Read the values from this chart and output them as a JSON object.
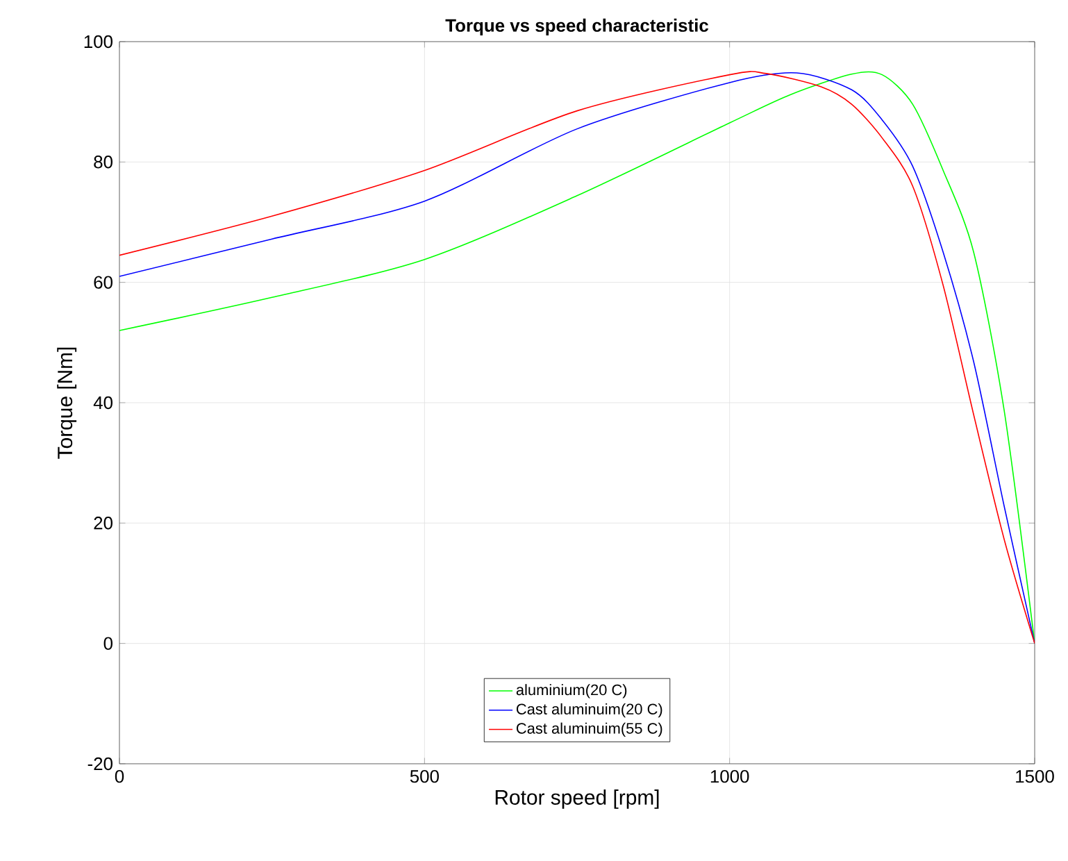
{
  "chart_data": {
    "type": "line",
    "title": "Torque vs speed characteristic",
    "xlabel": "Rotor speed [rpm]",
    "ylabel": "Torque [Nm]",
    "xlim": [
      0,
      1500
    ],
    "ylim": [
      -20,
      100
    ],
    "xticks": [
      0,
      500,
      1000,
      1500
    ],
    "yticks": [
      -20,
      0,
      20,
      40,
      60,
      80,
      100
    ],
    "grid": true,
    "legend": "bottom",
    "line_style": "solid",
    "marker": "none",
    "series": [
      {
        "name": "aluminium(20 C)",
        "color": "#00ff00",
        "x": [
          0,
          250,
          500,
          750,
          1000,
          1100,
          1200,
          1250,
          1300,
          1350,
          1400,
          1450,
          1500
        ],
        "values": [
          52,
          57.5,
          63.8,
          74.4,
          86.5,
          91.2,
          94.6,
          94.5,
          89.6,
          78.6,
          65,
          38.7,
          0
        ]
      },
      {
        "name": "Cast aluminuim(20 C)",
        "color": "#0000ff",
        "x": [
          0,
          250,
          500,
          750,
          1000,
          1110,
          1200,
          1250,
          1300,
          1350,
          1400,
          1450,
          1500
        ],
        "values": [
          61,
          67.2,
          73.5,
          85.5,
          93.2,
          94.8,
          92,
          87,
          79.3,
          65,
          46.8,
          22.8,
          0
        ]
      },
      {
        "name": "Cast aluminuim(55 C)",
        "color": "#ff0000",
        "x": [
          0,
          250,
          500,
          750,
          1000,
          1060,
          1150,
          1200,
          1250,
          1300,
          1350,
          1400,
          1450,
          1500
        ],
        "values": [
          64.5,
          71,
          78.6,
          88.5,
          94.5,
          94.7,
          92.5,
          89.6,
          84,
          76,
          59.5,
          38,
          17.3,
          0
        ]
      }
    ]
  }
}
